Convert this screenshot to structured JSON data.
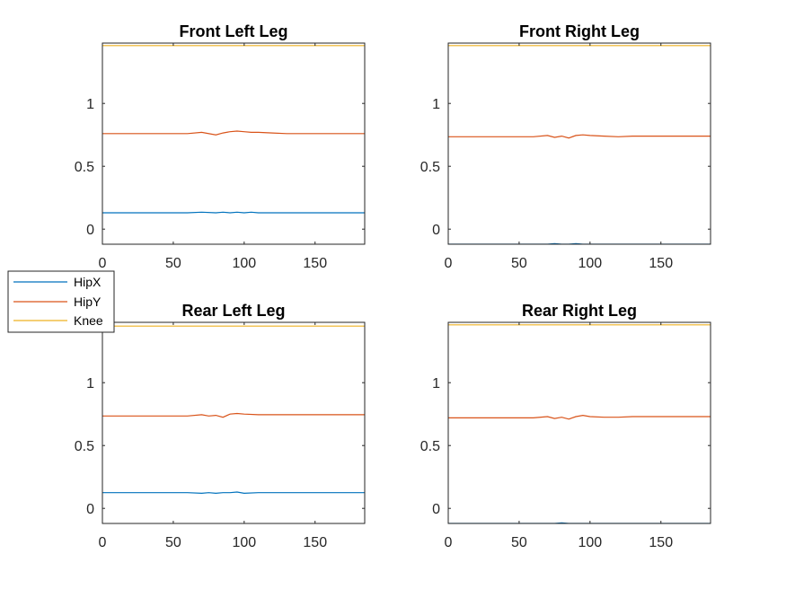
{
  "chart_data": [
    {
      "type": "line",
      "title": "Front Left Leg",
      "xlabel": "",
      "ylabel": "",
      "xlim": [
        0,
        185
      ],
      "ylim": [
        -0.12,
        1.48
      ],
      "xticks": [
        0,
        50,
        100,
        150
      ],
      "yticks": [
        0,
        0.5,
        1
      ],
      "x": [
        0,
        60,
        70,
        80,
        85,
        90,
        95,
        100,
        105,
        110,
        120,
        130,
        185
      ],
      "series": [
        {
          "name": "HipX",
          "values": [
            0.13,
            0.13,
            0.135,
            0.13,
            0.135,
            0.13,
            0.135,
            0.13,
            0.135,
            0.13,
            0.13,
            0.13,
            0.13
          ]
        },
        {
          "name": "HipY",
          "values": [
            0.76,
            0.76,
            0.77,
            0.75,
            0.765,
            0.775,
            0.78,
            0.775,
            0.77,
            0.77,
            0.765,
            0.76,
            0.76
          ]
        },
        {
          "name": "Knee",
          "values": [
            1.46,
            1.46,
            1.46,
            1.46,
            1.46,
            1.46,
            1.46,
            1.46,
            1.46,
            1.46,
            1.46,
            1.46,
            1.46
          ]
        }
      ]
    },
    {
      "type": "line",
      "title": "Front Right Leg",
      "xlabel": "",
      "ylabel": "",
      "xlim": [
        0,
        185
      ],
      "ylim": [
        -0.12,
        1.48
      ],
      "xticks": [
        0,
        50,
        100,
        150
      ],
      "yticks": [
        0,
        0.5,
        1
      ],
      "x": [
        0,
        60,
        70,
        75,
        80,
        85,
        90,
        95,
        100,
        110,
        120,
        130,
        185
      ],
      "series": [
        {
          "name": "HipX",
          "values": [
            -0.12,
            -0.12,
            -0.12,
            -0.115,
            -0.12,
            -0.12,
            -0.115,
            -0.12,
            -0.12,
            -0.12,
            -0.12,
            -0.12,
            -0.12
          ]
        },
        {
          "name": "HipY",
          "values": [
            0.735,
            0.735,
            0.745,
            0.73,
            0.74,
            0.725,
            0.745,
            0.75,
            0.745,
            0.74,
            0.735,
            0.74,
            0.74
          ]
        },
        {
          "name": "Knee",
          "values": [
            1.46,
            1.46,
            1.46,
            1.46,
            1.46,
            1.46,
            1.46,
            1.46,
            1.46,
            1.46,
            1.46,
            1.46,
            1.46
          ]
        }
      ]
    },
    {
      "type": "line",
      "title": "Rear Left Leg",
      "xlabel": "",
      "ylabel": "",
      "xlim": [
        0,
        185
      ],
      "ylim": [
        -0.12,
        1.48
      ],
      "xticks": [
        0,
        50,
        100,
        150
      ],
      "yticks": [
        0,
        0.5,
        1
      ],
      "x": [
        0,
        60,
        70,
        75,
        80,
        85,
        90,
        95,
        100,
        110,
        120,
        130,
        185
      ],
      "series": [
        {
          "name": "HipX",
          "values": [
            0.125,
            0.125,
            0.12,
            0.125,
            0.12,
            0.125,
            0.125,
            0.13,
            0.12,
            0.125,
            0.125,
            0.125,
            0.125
          ]
        },
        {
          "name": "HipY",
          "values": [
            0.735,
            0.735,
            0.745,
            0.735,
            0.74,
            0.725,
            0.75,
            0.755,
            0.75,
            0.745,
            0.745,
            0.745,
            0.745
          ]
        },
        {
          "name": "Knee",
          "values": [
            1.45,
            1.45,
            1.45,
            1.45,
            1.45,
            1.45,
            1.45,
            1.45,
            1.45,
            1.45,
            1.45,
            1.45,
            1.45
          ]
        }
      ]
    },
    {
      "type": "line",
      "title": "Rear Right Leg",
      "xlabel": "",
      "ylabel": "",
      "xlim": [
        0,
        185
      ],
      "ylim": [
        -0.12,
        1.48
      ],
      "xticks": [
        0,
        50,
        100,
        150
      ],
      "yticks": [
        0,
        0.5,
        1
      ],
      "x": [
        0,
        60,
        70,
        75,
        80,
        85,
        90,
        95,
        100,
        110,
        120,
        130,
        185
      ],
      "series": [
        {
          "name": "HipX",
          "values": [
            -0.12,
            -0.12,
            -0.12,
            -0.12,
            -0.115,
            -0.12,
            -0.12,
            -0.12,
            -0.12,
            -0.12,
            -0.12,
            -0.12,
            -0.12
          ]
        },
        {
          "name": "HipY",
          "values": [
            0.72,
            0.72,
            0.73,
            0.715,
            0.725,
            0.71,
            0.73,
            0.74,
            0.73,
            0.725,
            0.725,
            0.73,
            0.73
          ]
        },
        {
          "name": "Knee",
          "values": [
            1.46,
            1.46,
            1.46,
            1.46,
            1.46,
            1.46,
            1.46,
            1.46,
            1.46,
            1.46,
            1.46,
            1.46,
            1.46
          ]
        }
      ]
    }
  ],
  "legend": {
    "placement": "left-middle",
    "entries": [
      {
        "label": "HipX",
        "color": "#0072BD"
      },
      {
        "label": "HipY",
        "color": "#D95319"
      },
      {
        "label": "Knee",
        "color": "#EDB120"
      }
    ]
  },
  "colors": {
    "HipX": "#0072BD",
    "HipY": "#D95319",
    "Knee": "#EDB120",
    "axes": "#262626"
  }
}
